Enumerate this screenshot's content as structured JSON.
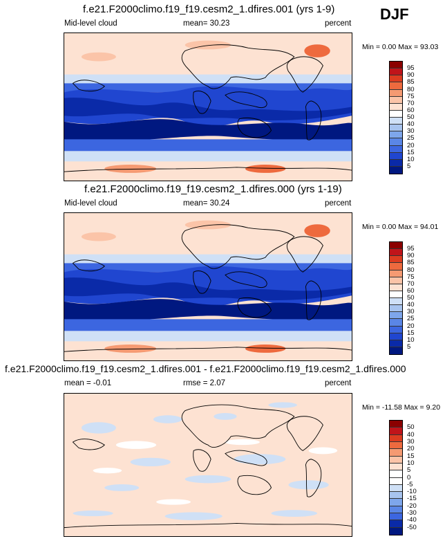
{
  "season": "DJF",
  "panels": [
    {
      "title": "f.e21.F2000climo.f19_f19.cesm2_1.dfires.001 (yrs 1-9)",
      "variable": "Mid-level cloud",
      "stat": "mean=  30.23",
      "units": "percent",
      "minmax": "Min =   0.00 Max =  93.03",
      "levels": [
        "95",
        "90",
        "85",
        "80",
        "75",
        "70",
        "60",
        "50",
        "40",
        "30",
        "25",
        "20",
        "15",
        "10",
        "5"
      ],
      "colors": [
        "#8b0000",
        "#c0141a",
        "#dc3c20",
        "#ee6a3e",
        "#f59a72",
        "#fbc4a8",
        "#fde2d2",
        "#ffffff",
        "#cfe0f6",
        "#a8c4ef",
        "#7ea6eb",
        "#5a86e6",
        "#3c66e0",
        "#2046d0",
        "#0a2aa8",
        "#001880"
      ],
      "field": "cloud"
    },
    {
      "title": "f.e21.F2000climo.f19_f19.cesm2_1.dfires.000 (yrs 1-19)",
      "variable": "Mid-level cloud",
      "stat": "mean=  30.24",
      "units": "percent",
      "minmax": "Min =   0.00 Max =  94.01",
      "levels": [
        "95",
        "90",
        "85",
        "80",
        "75",
        "70",
        "60",
        "50",
        "40",
        "30",
        "25",
        "20",
        "15",
        "10",
        "5"
      ],
      "colors": [
        "#8b0000",
        "#c0141a",
        "#dc3c20",
        "#ee6a3e",
        "#f59a72",
        "#fbc4a8",
        "#fde2d2",
        "#ffffff",
        "#cfe0f6",
        "#a8c4ef",
        "#7ea6eb",
        "#5a86e6",
        "#3c66e0",
        "#2046d0",
        "#0a2aa8",
        "#001880"
      ],
      "field": "cloud"
    },
    {
      "title": "f.e21.F2000climo.f19_f19.cesm2_1.dfires.001 - f.e21.F2000climo.f19_f19.cesm2_1.dfires.000",
      "variable": "mean =  -0.01",
      "stat": "rmse =   2.07",
      "units": "percent",
      "minmax": "Min = -11.58 Max =   9.20",
      "levels": [
        "50",
        "40",
        "30",
        "20",
        "15",
        "10",
        "5",
        "0",
        "-5",
        "-10",
        "-15",
        "-20",
        "-30",
        "-40",
        "-50"
      ],
      "colors": [
        "#8b0000",
        "#c0141a",
        "#dc3c20",
        "#ee6a3e",
        "#f59a72",
        "#fbc4a8",
        "#fde2d2",
        "#ffffff",
        "#ffffff",
        "#cfe0f6",
        "#a8c4ef",
        "#7ea6eb",
        "#5a86e6",
        "#3c66e0",
        "#0a2aa8",
        "#001880"
      ],
      "field": "diff"
    }
  ]
}
